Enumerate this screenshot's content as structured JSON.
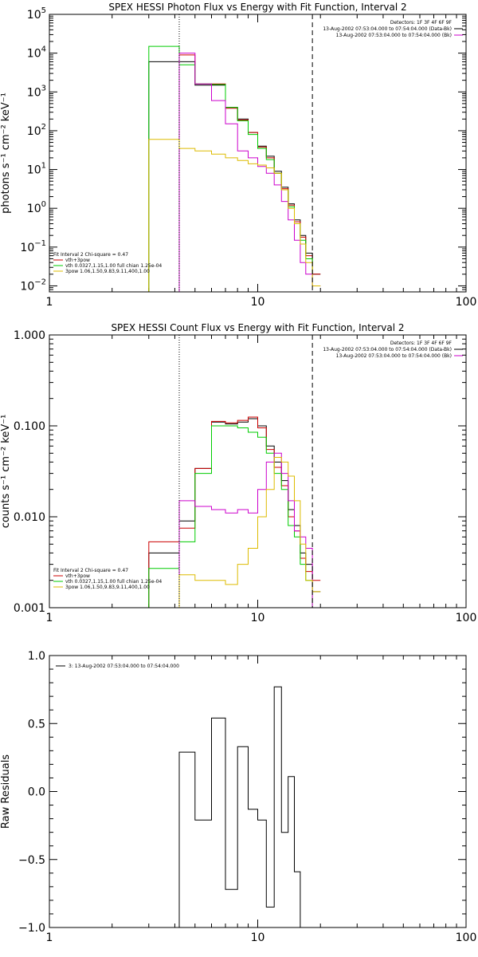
{
  "chart_data": [
    {
      "type": "line",
      "title": "SPEX HESSI Photon Flux vs Energy with Fit Function, Interval 2",
      "xlabel": "",
      "ylabel": "photons s⁻¹ cm⁻² keV⁻¹",
      "x_scale": "log",
      "y_scale": "log",
      "xlim": [
        1,
        100
      ],
      "ylim": [
        0.007,
        100000
      ],
      "x_ticks": [
        {
          "value": 1,
          "label": "1"
        },
        {
          "value": 10,
          "label": "10"
        },
        {
          "value": 100,
          "label": "100"
        }
      ],
      "y_ticks": [
        {
          "value": 0.01,
          "base": "10",
          "exp": "−2"
        },
        {
          "value": 0.1,
          "base": "10",
          "exp": "−1"
        },
        {
          "value": 1,
          "base": "10",
          "exp": "0"
        },
        {
          "value": 10,
          "base": "10",
          "exp": "1"
        },
        {
          "value": 100,
          "base": "10",
          "exp": "2"
        },
        {
          "value": 1000,
          "base": "10",
          "exp": "3"
        },
        {
          "value": 10000,
          "base": "10",
          "exp": "4"
        },
        {
          "value": 100000,
          "base": "10",
          "exp": "5"
        }
      ],
      "vlines": [
        {
          "x": 4.2,
          "style": "dotted",
          "color": "#000000"
        },
        {
          "x": 18.3,
          "style": "dashed",
          "color": "#000000"
        }
      ],
      "legend_top_right": [
        {
          "text": "Detectors: 1F 3F 4F 6F 9F",
          "color": ""
        },
        {
          "text": "13-Aug-2002 07:53:04.000 to 07:54:04.000 (Data-Bk)",
          "color": "#000000"
        },
        {
          "text": "13-Aug-2002 07:53:04.000 to 07:54:04.000 (Bk)",
          "color": "#cc00cc"
        }
      ],
      "legend_bottom_left": [
        {
          "text": "Fit Interval 2   Chi-square = 0.47",
          "color": ""
        },
        {
          "text": "vth+3pow",
          "color": "#cc0000"
        },
        {
          "text": "vth 0.0327,1.15,1.00  full chian 1.25e-04",
          "color": "#00cc00"
        },
        {
          "text": "3pow 1.06,1.50,9.83,9.11,400,1.00",
          "color": "#ddbb00"
        }
      ],
      "edges": [
        3,
        4.2,
        5,
        6,
        7,
        8,
        9,
        10,
        11,
        12,
        13,
        14,
        15,
        16,
        17,
        18.3,
        20
      ],
      "series": [
        {
          "color": "#000000",
          "values": [
            6000,
            6000,
            1500,
            1500,
            400,
            200,
            90,
            40,
            22,
            9,
            3.5,
            1.3,
            0.5,
            0.2,
            0.07,
            0.02
          ]
        },
        {
          "color": "#cc0000",
          "values": [
            null,
            9000,
            1600,
            1600,
            380,
            190,
            90,
            38,
            20,
            8,
            3.2,
            1.2,
            0.45,
            0.18,
            0.06,
            0.02
          ]
        },
        {
          "color": "#00cc00",
          "values": [
            15000,
            5000,
            1600,
            1550,
            400,
            180,
            80,
            35,
            18,
            8,
            3,
            1.1,
            0.4,
            0.15,
            0.05,
            0.01
          ]
        },
        {
          "color": "#cc00cc",
          "values": [
            null,
            10000,
            1600,
            600,
            150,
            30,
            20,
            12,
            8,
            4,
            1.5,
            0.5,
            0.15,
            0.04,
            0.02,
            0.01
          ]
        },
        {
          "color": "#ddbb00",
          "values": [
            60,
            35,
            30,
            25,
            20,
            17,
            14,
            13,
            11,
            8,
            3,
            1,
            0.4,
            0.12,
            0.04,
            0.01
          ]
        }
      ]
    },
    {
      "type": "line",
      "title": "SPEX HESSI Count Flux vs Energy with Fit Function, Interval 2",
      "xlabel": "",
      "ylabel": "counts s⁻¹ cm⁻² keV⁻¹",
      "x_scale": "log",
      "y_scale": "log",
      "xlim": [
        1,
        100
      ],
      "ylim": [
        0.001,
        1
      ],
      "x_ticks": [
        {
          "value": 1,
          "label": "1"
        },
        {
          "value": 10,
          "label": "10"
        },
        {
          "value": 100,
          "label": "100"
        }
      ],
      "y_ticks": [
        {
          "value": 0.001,
          "label": "0.001"
        },
        {
          "value": 0.01,
          "label": "0.010"
        },
        {
          "value": 0.1,
          "label": "0.100"
        },
        {
          "value": 1,
          "label": "1.000"
        }
      ],
      "vlines": [
        {
          "x": 4.2,
          "style": "dotted",
          "color": "#000000"
        },
        {
          "x": 18.3,
          "style": "dashed",
          "color": "#000000"
        }
      ],
      "legend_top_right": [
        {
          "text": "Detectors: 1F 3F 4F 6F 9F",
          "color": ""
        },
        {
          "text": "13-Aug-2002 07:53:04.000 to 07:54:04.000 (Data-Bk)",
          "color": "#000000"
        },
        {
          "text": "13-Aug-2002 07:53:04.000 to 07:54:04.000 (Bk)",
          "color": "#cc00cc"
        }
      ],
      "legend_bottom_left": [
        {
          "text": "Fit Interval 2   Chi-square = 0.47",
          "color": ""
        },
        {
          "text": "vth+3pow",
          "color": "#cc0000"
        },
        {
          "text": "vth 0.0327,1.15,1.00  full chian 1.25e-04",
          "color": "#00cc00"
        },
        {
          "text": "3pow 1.06,1.50,9.83,9.11,400,1.00",
          "color": "#ddbb00"
        }
      ],
      "edges": [
        3,
        4.2,
        5,
        6,
        7,
        8,
        9,
        10,
        11,
        12,
        13,
        14,
        15,
        16,
        17,
        18.3,
        20
      ],
      "series": [
        {
          "color": "#000000",
          "values": [
            0.004,
            0.009,
            0.034,
            0.11,
            0.105,
            0.11,
            0.12,
            0.1,
            0.06,
            0.04,
            0.025,
            0.012,
            0.008,
            0.004,
            0.003,
            0.0015
          ]
        },
        {
          "color": "#cc0000",
          "values": [
            0.0053,
            0.0075,
            0.034,
            0.112,
            0.108,
            0.115,
            0.125,
            0.095,
            0.055,
            0.035,
            0.022,
            0.01,
            0.007,
            0.0035,
            0.0025,
            0.002
          ]
        },
        {
          "color": "#00cc00",
          "values": [
            0.0027,
            0.0053,
            0.03,
            0.1,
            0.1,
            0.095,
            0.085,
            0.075,
            0.05,
            0.03,
            0.02,
            0.008,
            0.006,
            0.003,
            0.002,
            0.001
          ]
        },
        {
          "color": "#cc00cc",
          "values": [
            null,
            0.015,
            0.013,
            0.012,
            0.011,
            0.012,
            0.011,
            0.02,
            0.04,
            0.05,
            0.03,
            0.015,
            0.007,
            0.006,
            0.0045,
            0.001
          ]
        },
        {
          "color": "#ddbb00",
          "values": [
            null,
            0.0023,
            0.002,
            0.002,
            0.0018,
            0.003,
            0.0045,
            0.01,
            0.02,
            0.045,
            0.04,
            0.028,
            0.015,
            0.005,
            0.002,
            0.0015
          ]
        }
      ]
    },
    {
      "type": "line",
      "title": "",
      "xlabel": "",
      "ylabel": "Raw Residuals",
      "x_scale": "log",
      "y_scale": "linear",
      "xlim": [
        1,
        100
      ],
      "ylim": [
        -1,
        1
      ],
      "x_ticks": [
        {
          "value": 1,
          "label": "1"
        },
        {
          "value": 10,
          "label": "10"
        },
        {
          "value": 100,
          "label": "100"
        }
      ],
      "y_ticks": [
        {
          "value": -1,
          "label": "−1.0"
        },
        {
          "value": -0.5,
          "label": "−0.5"
        },
        {
          "value": 0,
          "label": "0.0"
        },
        {
          "value": 0.5,
          "label": "0.5"
        },
        {
          "value": 1,
          "label": "1.0"
        }
      ],
      "vlines": [],
      "legend_top_right": [],
      "legend_bottom_left": [],
      "legend_top_left": [
        {
          "text": "3: 13-Aug-2002 07:53:04.000 to 07:54:04.000",
          "color": "#000000"
        }
      ],
      "edges": [
        4.2,
        5,
        6,
        7,
        8,
        9,
        10,
        11,
        12,
        13,
        14,
        15,
        16,
        17,
        18.3
      ],
      "baseline": -1,
      "series": [
        {
          "color": "#000000",
          "values": [
            0.29,
            -0.21,
            0.54,
            -0.72,
            0.33,
            -0.13,
            -0.21,
            -0.85,
            0.77,
            -0.3,
            0.11,
            -0.59,
            -1,
            -1
          ]
        }
      ]
    }
  ]
}
